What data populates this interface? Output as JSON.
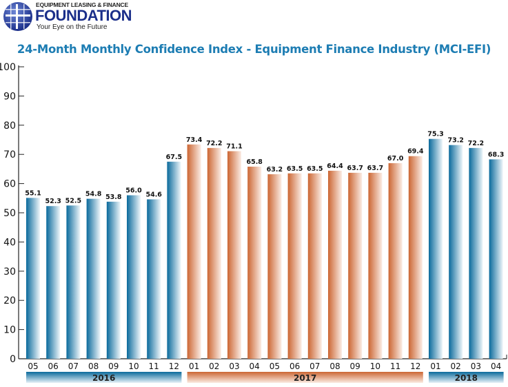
{
  "logo": {
    "top_text": "EQUIPMENT LEASING & FINANCE",
    "main_text": "FOUNDATION",
    "tagline": "Your Eye on the Future"
  },
  "colors": {
    "blue": "#0a6a9c",
    "orange": "#cc6633",
    "title": "#1d7db3",
    "logo": "#1b2f8a"
  },
  "chart_data": {
    "type": "bar",
    "title": "24-Month Monthly Confidence Index - Equipment Finance Industry (MCI-EFI)",
    "categories": [
      "05",
      "06",
      "07",
      "08",
      "09",
      "10",
      "11",
      "12",
      "01",
      "02",
      "03",
      "04",
      "05",
      "06",
      "07",
      "08",
      "09",
      "10",
      "11",
      "12",
      "01",
      "02",
      "03",
      "04"
    ],
    "years": [
      {
        "label": "2016",
        "start": 0,
        "count": 8,
        "color": "blue"
      },
      {
        "label": "2017",
        "start": 8,
        "count": 12,
        "color": "orange"
      },
      {
        "label": "2018",
        "start": 20,
        "count": 4,
        "color": "blue"
      }
    ],
    "values": [
      55.1,
      52.3,
      52.5,
      54.8,
      53.8,
      56.0,
      54.6,
      67.5,
      73.4,
      72.2,
      71.1,
      65.8,
      63.2,
      63.5,
      63.5,
      64.4,
      63.7,
      63.7,
      67.0,
      69.4,
      75.3,
      73.2,
      72.2,
      68.3
    ],
    "value_labels": [
      "55.1",
      "52.3",
      "52.5",
      "54.8",
      "53.8",
      "56.0",
      "54.6",
      "67.5",
      "73.4",
      "72.2",
      "71.1",
      "65.8",
      "63.2",
      "63.5",
      "63.5",
      "64.4",
      "63.7",
      "63.7",
      "67.0",
      "69.4",
      "75.3",
      "73.2",
      "72.2",
      "68.3"
    ],
    "yticks": [
      "0",
      "10",
      "20",
      "30",
      "40",
      "50",
      "60",
      "70",
      "80",
      "90",
      "100"
    ],
    "ylim": [
      0,
      100
    ],
    "grid": false
  }
}
